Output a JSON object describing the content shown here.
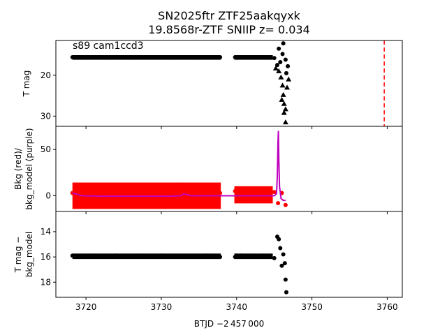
{
  "title_line1": "SN2025ftr  ZTF25aakqyxk",
  "title_line2": "19.8568r-ZTF SNIIP z= 0.034",
  "annotation": "s89 cam1ccd3",
  "xlabel": "BTJD −2 457 000",
  "colors": {
    "black": "#000000",
    "red": "#ff0000",
    "purple": "#bf00bf",
    "marker_line": "#ff0000"
  },
  "chart_data": [
    {
      "type": "scatter",
      "panel": "top",
      "ylabel": "T mag",
      "ylim": [
        32.5,
        11.5
      ],
      "xlim": [
        3716,
        3762
      ],
      "yticks": [
        20,
        30
      ],
      "vline": {
        "x": 3759.6,
        "style": "dashed",
        "color": "#ff0000"
      },
      "series": [
        {
          "marker": "circle",
          "color": "#000000",
          "points": [
            [
              3718.2,
              15.6
            ],
            [
              3719,
              15.6
            ],
            [
              3720,
              15.7
            ],
            [
              3721,
              15.6
            ],
            [
              3722,
              15.6
            ],
            [
              3723,
              15.7
            ],
            [
              3724,
              15.6
            ],
            [
              3725,
              15.6
            ],
            [
              3726,
              15.7
            ],
            [
              3727,
              15.6
            ],
            [
              3728,
              15.6
            ],
            [
              3729,
              15.6
            ],
            [
              3730,
              15.6
            ],
            [
              3731,
              15.7
            ],
            [
              3732,
              15.6
            ],
            [
              3733,
              15.6
            ],
            [
              3734,
              15.6
            ],
            [
              3735,
              15.7
            ],
            [
              3736,
              15.6
            ],
            [
              3737,
              15.6
            ],
            [
              3737.8,
              15.6
            ],
            [
              3739.8,
              15.6
            ],
            [
              3740.5,
              15.6
            ],
            [
              3741.5,
              15.6
            ],
            [
              3742.5,
              15.6
            ],
            [
              3743.5,
              15.6
            ],
            [
              3744.3,
              15.7
            ],
            [
              3745.0,
              15.8
            ],
            [
              3745.4,
              17.5
            ],
            [
              3745.8,
              16.8
            ],
            [
              3746.1,
              14.8
            ],
            [
              3746.5,
              16.2
            ],
            [
              3746.8,
              17.8
            ],
            [
              3745.6,
              13.5
            ],
            [
              3746.2,
              12.2
            ],
            [
              3746.6,
              19.5
            ]
          ]
        },
        {
          "marker": "triangle",
          "color": "#000000",
          "points": [
            [
              3745.2,
              18.3
            ],
            [
              3745.6,
              19.0
            ],
            [
              3745.9,
              20.5
            ],
            [
              3746.1,
              22.5
            ],
            [
              3746.2,
              24.8
            ],
            [
              3746.3,
              27.0
            ],
            [
              3746.3,
              29.2
            ],
            [
              3746.5,
              31.5
            ],
            [
              3746.0,
              26.0
            ],
            [
              3746.5,
              28.3
            ],
            [
              3746.7,
              23.0
            ],
            [
              3746.9,
              21.0
            ]
          ]
        }
      ]
    },
    {
      "type": "scatter",
      "panel": "middle",
      "ylabel": "Bkg (red)/\nbkg_model (purple)",
      "ylim": [
        -17,
        75
      ],
      "xlim": [
        3716,
        3762
      ],
      "yticks": [
        0,
        50
      ],
      "series": [
        {
          "name": "Bkg",
          "marker": "circle",
          "color": "#ff0000",
          "points": [
            [
              3718.2,
              3
            ],
            [
              3718.5,
              -12
            ],
            [
              3718.7,
              10
            ],
            [
              3719,
              5
            ],
            [
              3720,
              2
            ],
            [
              3721,
              -5
            ],
            [
              3722,
              4
            ],
            [
              3723,
              -3
            ],
            [
              3724,
              5
            ],
            [
              3725,
              -4
            ],
            [
              3726,
              3
            ],
            [
              3727,
              -5
            ],
            [
              3728,
              4
            ],
            [
              3729,
              -3
            ],
            [
              3730,
              5
            ],
            [
              3731,
              -4
            ],
            [
              3732,
              3
            ],
            [
              3732.5,
              12
            ],
            [
              3733,
              -10
            ],
            [
              3733.5,
              10
            ],
            [
              3734,
              5
            ],
            [
              3735,
              -3
            ],
            [
              3736,
              4
            ],
            [
              3737,
              -5
            ],
            [
              3737.8,
              3
            ],
            [
              3739.8,
              5
            ],
            [
              3740.5,
              -6
            ],
            [
              3741,
              8
            ],
            [
              3742,
              -4
            ],
            [
              3743,
              5
            ],
            [
              3744,
              -3
            ],
            [
              3745,
              4
            ],
            [
              3745.5,
              -8
            ],
            [
              3746,
              3
            ],
            [
              3746.5,
              -10
            ]
          ]
        },
        {
          "name": "bkg_model",
          "marker": "line",
          "color": "#bf00bf",
          "points": [
            [
              3718.2,
              3
            ],
            [
              3719.5,
              0
            ],
            [
              3722,
              -0.5
            ],
            [
              3725,
              -0.5
            ],
            [
              3728,
              -0.5
            ],
            [
              3731,
              -0.5
            ],
            [
              3732.6,
              0
            ],
            [
              3733,
              2
            ],
            [
              3734,
              0
            ],
            [
              3737.8,
              0
            ],
            [
              3739.8,
              0
            ],
            [
              3742,
              0
            ],
            [
              3744,
              0
            ],
            [
              3745,
              0
            ],
            [
              3745.3,
              2
            ],
            [
              3745.4,
              20
            ],
            [
              3745.5,
              60
            ],
            [
              3745.55,
              70
            ],
            [
              3745.6,
              40
            ],
            [
              3745.7,
              10
            ],
            [
              3745.9,
              -3
            ],
            [
              3746.2,
              -5
            ],
            [
              3746.5,
              -5
            ]
          ]
        }
      ]
    },
    {
      "type": "scatter",
      "panel": "bottom",
      "ylabel": "T mag −\nbkg_model",
      "ylim": [
        19.2,
        12.4
      ],
      "xlim": [
        3716,
        3762
      ],
      "yticks": [
        14,
        16,
        18
      ],
      "xticks": [
        3720,
        3730,
        3740,
        3750,
        3760
      ],
      "series": [
        {
          "marker": "circle",
          "color": "#000000",
          "points": [
            [
              3718.2,
              15.9
            ],
            [
              3719,
              16.0
            ],
            [
              3720,
              16.0
            ],
            [
              3721,
              15.9
            ],
            [
              3722,
              16.0
            ],
            [
              3723,
              16.0
            ],
            [
              3724,
              15.9
            ],
            [
              3725,
              16.0
            ],
            [
              3726,
              16.0
            ],
            [
              3727,
              15.9
            ],
            [
              3728,
              16.0
            ],
            [
              3729,
              16.0
            ],
            [
              3730,
              15.9
            ],
            [
              3731,
              16.0
            ],
            [
              3732,
              16.0
            ],
            [
              3733,
              15.9
            ],
            [
              3734,
              16.0
            ],
            [
              3735,
              16.0
            ],
            [
              3736,
              15.9
            ],
            [
              3737,
              16.0
            ],
            [
              3737.8,
              16.0
            ],
            [
              3739.8,
              16.0
            ],
            [
              3740.5,
              15.9
            ],
            [
              3741.5,
              16.0
            ],
            [
              3742.5,
              16.0
            ],
            [
              3743.5,
              15.9
            ],
            [
              3744.3,
              16.0
            ],
            [
              3745.0,
              16.1
            ],
            [
              3745.4,
              14.4
            ],
            [
              3745.6,
              14.6
            ],
            [
              3745.8,
              15.3
            ],
            [
              3746.0,
              16.7
            ],
            [
              3746.2,
              15.8
            ],
            [
              3746.4,
              16.5
            ],
            [
              3746.5,
              17.8
            ],
            [
              3746.6,
              18.8
            ]
          ]
        }
      ]
    }
  ]
}
